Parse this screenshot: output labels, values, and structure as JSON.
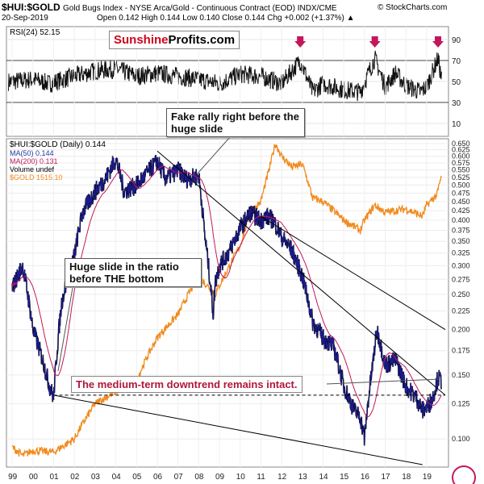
{
  "header": {
    "symbol": "$HUI:$GOLD",
    "description": "Gold Bugs Index - NYSE Arca/Gold - Continuous Contract (EOD) INDX/CME",
    "copyright": "© StockCharts.com",
    "date": "20-Sep-2019",
    "quote": "Open 0.142  High 0.144  Low 0.140  Close 0.144  Chg +0.002 (+1.37%) ▲"
  },
  "brand": {
    "part1": "Sunshine",
    "part2": "Profits.com"
  },
  "colors": {
    "ratio": "#1b1b8f",
    "ma50": "#1d3aa0",
    "ma200": "#c2185b",
    "gold": "#f08a1e",
    "arrow": "#c2185b",
    "banner": "#b0173a",
    "line": "#000000"
  },
  "annotations": {
    "fake_rally": "Fake rally right before the huge slide",
    "huge_slide": "Huge slide in the ratio before THE bottom",
    "downtrend": "The medium-term downtrend remains intact."
  },
  "legend": {
    "main": "$HUI:$GOLD (Daily) 0.144",
    "ma50": "MA(50) 0.144",
    "ma200": "MA(200) 0.131",
    "volume": "Volume undef",
    "gold": "$GOLD 1515.10"
  },
  "chart_data": [
    {
      "type": "line",
      "title": "RSI(24) 52.15",
      "x_unit": "year (decimal)",
      "ylim": [
        0,
        100
      ],
      "ticks": [
        10,
        30,
        50,
        70,
        90
      ],
      "reference_lines": [
        30,
        70
      ],
      "series": [
        {
          "name": "RSI(24)",
          "x": [
            1999.0,
            2000.0,
            2000.8,
            2002.0,
            2003.0,
            2004.0,
            2005.0,
            2006.0,
            2007.0,
            2008.0,
            2009.0,
            2010.0,
            2011.0,
            2012.0,
            2012.9,
            2013.5,
            2014.0,
            2015.0,
            2015.8,
            2016.5,
            2017.0,
            2017.5,
            2018.0,
            2018.7,
            2019.0,
            2019.55,
            2019.72
          ],
          "values": [
            50,
            52,
            48,
            55,
            60,
            62,
            55,
            58,
            55,
            52,
            48,
            57,
            55,
            48,
            70,
            40,
            48,
            42,
            40,
            72,
            45,
            58,
            46,
            40,
            45,
            72,
            52.15
          ]
        }
      ],
      "markers": [
        {
          "name": "down-arrow",
          "x": 2012.9
        },
        {
          "name": "down-arrow",
          "x": 2016.5
        },
        {
          "name": "down-arrow",
          "x": 2019.55
        }
      ]
    },
    {
      "type": "line",
      "title": "$HUI:$GOLD (Daily) 0.144",
      "scale": "log",
      "x_unit": "year (decimal)",
      "xlim": [
        1998.8,
        2019.9
      ],
      "ylim": [
        0.085,
        0.66
      ],
      "x_ticks": [
        {
          "v": 1999,
          "l": "99"
        },
        {
          "v": 2000,
          "l": "00"
        },
        {
          "v": 2001,
          "l": "01"
        },
        {
          "v": 2002,
          "l": "02"
        },
        {
          "v": 2003,
          "l": "03"
        },
        {
          "v": 2004,
          "l": "04"
        },
        {
          "v": 2005,
          "l": "05"
        },
        {
          "v": 2006,
          "l": "06"
        },
        {
          "v": 2007,
          "l": "07"
        },
        {
          "v": 2008,
          "l": "08"
        },
        {
          "v": 2009,
          "l": "09"
        },
        {
          "v": 2010,
          "l": "10"
        },
        {
          "v": 2011,
          "l": "11"
        },
        {
          "v": 2012,
          "l": "12"
        },
        {
          "v": 2013,
          "l": "13"
        },
        {
          "v": 2014,
          "l": "14"
        },
        {
          "v": 2015,
          "l": "15"
        },
        {
          "v": 2016,
          "l": "16"
        },
        {
          "v": 2017,
          "l": "17"
        },
        {
          "v": 2018,
          "l": "18"
        },
        {
          "v": 2019,
          "l": "19"
        }
      ],
      "y_ticks": [
        0.1,
        0.125,
        0.15,
        0.175,
        0.2,
        0.225,
        0.25,
        0.275,
        0.3,
        0.325,
        0.35,
        0.375,
        0.4,
        0.425,
        0.45,
        0.475,
        0.5,
        0.525,
        0.55,
        0.575,
        0.6,
        0.625,
        0.65
      ],
      "series": [
        {
          "name": "$HUI:$GOLD",
          "x": [
            1999.0,
            1999.5,
            2000.0,
            2000.4,
            2000.8,
            2001.0,
            2001.4,
            2002.0,
            2002.4,
            2003.0,
            2003.5,
            2004.0,
            2004.4,
            2005.0,
            2005.4,
            2006.0,
            2006.4,
            2007.0,
            2007.4,
            2008.0,
            2008.3,
            2008.7,
            2008.8,
            2009.0,
            2009.5,
            2010.0,
            2010.5,
            2011.0,
            2011.3,
            2011.6,
            2012.0,
            2012.5,
            2013.0,
            2013.5,
            2014.0,
            2014.5,
            2015.0,
            2015.5,
            2015.8,
            2016.0,
            2016.4,
            2016.6,
            2017.0,
            2017.5,
            2018.0,
            2018.5,
            2018.8,
            2019.0,
            2019.3,
            2019.55,
            2019.72
          ],
          "values": [
            0.26,
            0.3,
            0.2,
            0.17,
            0.14,
            0.13,
            0.24,
            0.32,
            0.42,
            0.48,
            0.52,
            0.59,
            0.48,
            0.5,
            0.53,
            0.58,
            0.52,
            0.55,
            0.52,
            0.53,
            0.36,
            0.22,
            0.27,
            0.3,
            0.33,
            0.38,
            0.42,
            0.4,
            0.41,
            0.4,
            0.36,
            0.33,
            0.28,
            0.21,
            0.19,
            0.18,
            0.14,
            0.12,
            0.115,
            0.1,
            0.16,
            0.2,
            0.16,
            0.165,
            0.14,
            0.13,
            0.12,
            0.122,
            0.13,
            0.148,
            0.144
          ]
        },
        {
          "name": "MA(50)",
          "value_last": 0.144
        },
        {
          "name": "MA(200)",
          "value_last": 0.131
        },
        {
          "name": "$GOLD",
          "x": [
            1999.0,
            1999.5,
            2000.0,
            2001.0,
            2002.0,
            2003.0,
            2004.0,
            2005.0,
            2006.0,
            2007.0,
            2008.0,
            2008.8,
            2009.5,
            2010.0,
            2010.5,
            2011.0,
            2011.4,
            2011.7,
            2012.0,
            2012.5,
            2013.0,
            2013.5,
            2014.0,
            2015.0,
            2015.8,
            2016.0,
            2016.5,
            2017.0,
            2018.0,
            2018.8,
            2019.0,
            2019.5,
            2019.72
          ],
          "values": [
            0.095,
            0.09,
            0.093,
            0.092,
            0.1,
            0.125,
            0.135,
            0.145,
            0.19,
            0.22,
            0.28,
            0.25,
            0.3,
            0.34,
            0.42,
            0.45,
            0.55,
            0.65,
            0.6,
            0.56,
            0.57,
            0.46,
            0.45,
            0.4,
            0.375,
            0.4,
            0.44,
            0.42,
            0.43,
            0.41,
            0.44,
            0.47,
            0.53
          ]
        }
      ],
      "trend_lines": [
        {
          "name": "upper-resistance",
          "points": [
            [
              2006.0,
              0.62
            ],
            [
              2019.9,
              0.132
            ]
          ]
        },
        {
          "name": "long-resistance",
          "points": [
            [
              2011.0,
              0.41
            ],
            [
              2019.9,
              0.2
            ]
          ]
        },
        {
          "name": "lower-support",
          "points": [
            [
              2001.0,
              0.132
            ],
            [
              2018.8,
              0.085
            ]
          ]
        },
        {
          "name": "support-dashed",
          "points": [
            [
              2001.0,
              0.132
            ],
            [
              2019.9,
              0.132
            ]
          ]
        }
      ]
    }
  ]
}
